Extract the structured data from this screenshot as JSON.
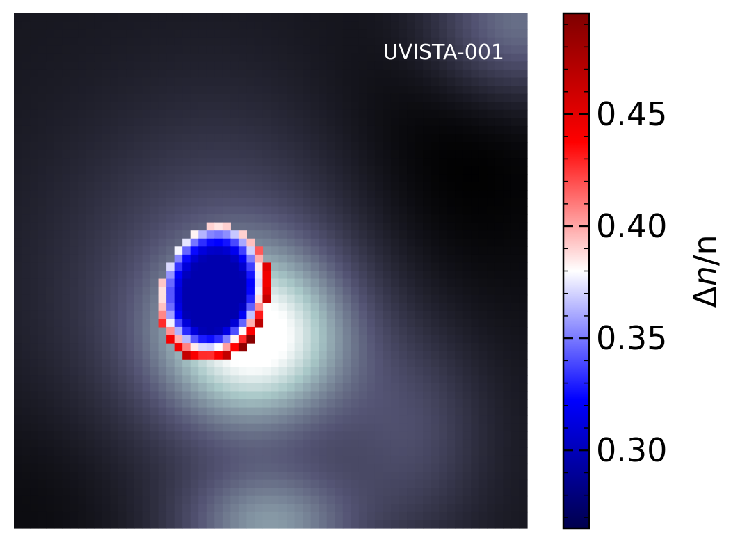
{
  "chart_data": {
    "type": "heatmap",
    "annotation": "UVISTA-001",
    "colorbar": {
      "label_prefix": "Δ",
      "label_italic": "n",
      "label_suffix": "/n",
      "range": [
        0.265,
        0.495
      ],
      "ticks": [
        0.3,
        0.35,
        0.4,
        0.45
      ],
      "tick_labels": [
        "0.30",
        "0.35",
        "0.40",
        "0.45"
      ],
      "minor_step": 0.01,
      "colormap": "seismic",
      "colormap_stops": [
        "#00004c",
        "#0000ff",
        "#ffffff",
        "#ff0000",
        "#7f0000"
      ]
    },
    "background": {
      "colormap": "bone",
      "description_features": {
        "bright_center_value": 0.85,
        "dark_upper_right_value": 0.02,
        "bright_bottom_center_value": 0.55
      }
    },
    "map": {
      "grid_cols": 64,
      "grid_rows": 64,
      "region_core_value": 0.285,
      "region_edge_value": 0.47
    }
  },
  "colors": {
    "axes_frame": "#000000",
    "annotation_text": "#ffffff"
  }
}
